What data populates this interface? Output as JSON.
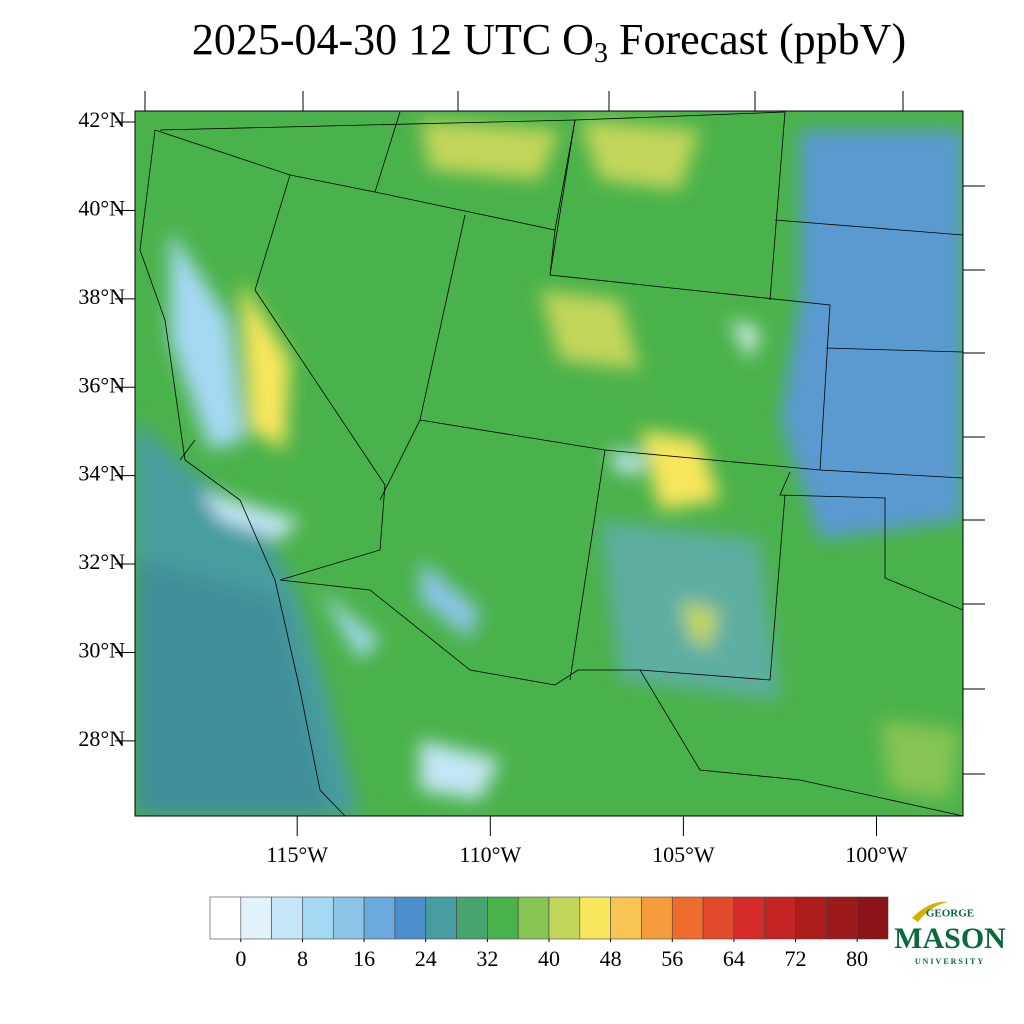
{
  "chart_data": {
    "type": "map",
    "title": {
      "prefix": "2025-04-30 12 UTC O",
      "subscript": "3",
      "suffix": " Forecast (ppbV)"
    },
    "xlim": [
      -119.2,
      -97.76
    ],
    "ylim": [
      26.3,
      42.25
    ],
    "xticks": [
      {
        "value": -115,
        "label": "115°W"
      },
      {
        "value": -110,
        "label": "110°W"
      },
      {
        "value": -105,
        "label": "105°W"
      },
      {
        "value": -100,
        "label": "100°W"
      }
    ],
    "yticks": [
      {
        "value": 42,
        "label": "42°N"
      },
      {
        "value": 40,
        "label": "40°N"
      },
      {
        "value": 38,
        "label": "38°N"
      },
      {
        "value": 36,
        "label": "36°N"
      },
      {
        "value": 34,
        "label": "34°N"
      },
      {
        "value": 32,
        "label": "32°N"
      },
      {
        "value": 30,
        "label": "30°N"
      },
      {
        "value": 28,
        "label": "28°N"
      }
    ],
    "colorbar": {
      "clim": [
        -4,
        84
      ],
      "ticks": [
        0,
        8,
        16,
        24,
        32,
        40,
        48,
        56,
        64,
        72,
        80
      ],
      "colors": [
        "#ffffff",
        "#e2f2fa",
        "#c4e6f6",
        "#a4d8f2",
        "#8cc4e6",
        "#6aaadc",
        "#4a8ecc",
        "#469c9e",
        "#48a46e",
        "#4ab24a",
        "#86c454",
        "#c2d65a",
        "#f8e65c",
        "#f8c454",
        "#f69c3c",
        "#f06c2c",
        "#e24c2c",
        "#d82c2c",
        "#c42424",
        "#ae1c1c",
        "#9c1a1c",
        "#8a1418"
      ]
    },
    "logo": {
      "top": "GEORGE",
      "main": "MASON",
      "bottom": "UNIVERSITY"
    }
  }
}
